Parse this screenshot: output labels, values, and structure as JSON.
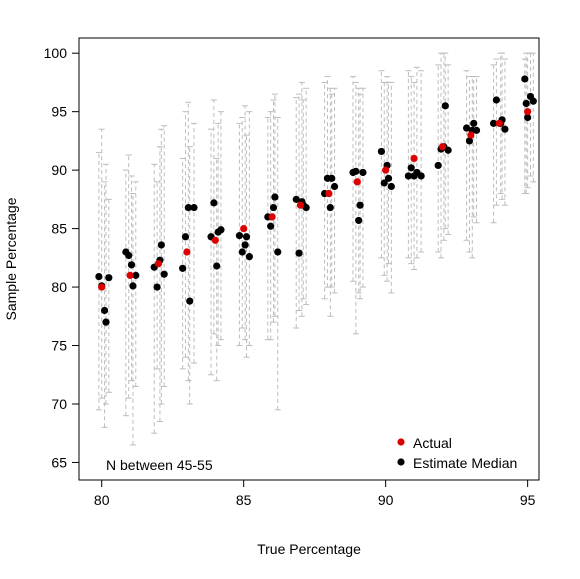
{
  "chart_data": {
    "type": "scatter",
    "xlabel": "True Percentage",
    "ylabel": "Sample Percentage",
    "xlim": [
      79.2,
      95.4
    ],
    "ylim": [
      63.5,
      101.3
    ],
    "xticks": [
      80,
      85,
      90,
      95
    ],
    "yticks": [
      65,
      70,
      75,
      80,
      85,
      90,
      95,
      100
    ],
    "annotation": "N between 45-55",
    "legend_position": "bottom-right",
    "colors": {
      "actual": "#dd0000",
      "median": "#000000",
      "interval": "#bdbdbd"
    },
    "series": [
      {
        "name": "Actual",
        "color": "#dd0000",
        "points": [
          [
            80,
            80
          ],
          [
            81,
            81
          ],
          [
            82,
            82
          ],
          [
            83,
            83
          ],
          [
            84,
            84
          ],
          [
            85,
            85
          ],
          [
            86,
            86
          ],
          [
            87,
            87
          ],
          [
            88,
            88
          ],
          [
            89,
            89
          ],
          [
            90,
            90
          ],
          [
            91,
            91
          ],
          [
            92,
            92
          ],
          [
            93,
            93
          ],
          [
            94,
            94
          ],
          [
            95,
            95
          ]
        ]
      },
      {
        "name": "Estimate Median",
        "color": "#000000",
        "points": [
          {
            "x": 79.9,
            "y": 80.9,
            "lo": 69.5,
            "hi": 91.5
          },
          {
            "x": 80.0,
            "y": 80.1,
            "lo": 70.5,
            "hi": 93.5
          },
          {
            "x": 80.1,
            "y": 78.0,
            "lo": 68.0,
            "hi": 89.0
          },
          {
            "x": 80.15,
            "y": 77.0,
            "lo": 70.0,
            "hi": 90.5
          },
          {
            "x": 80.25,
            "y": 80.8,
            "lo": 71.0,
            "hi": 87.5
          },
          {
            "x": 80.85,
            "y": 83.0,
            "lo": 69.0,
            "hi": 90.0
          },
          {
            "x": 80.95,
            "y": 82.7,
            "lo": 70.5,
            "hi": 91.3
          },
          {
            "x": 81.05,
            "y": 81.9,
            "lo": 72.0,
            "hi": 89.5
          },
          {
            "x": 81.1,
            "y": 80.1,
            "lo": 66.5,
            "hi": 88.0
          },
          {
            "x": 81.2,
            "y": 81.0,
            "lo": 71.5,
            "hi": 89.0
          },
          {
            "x": 81.85,
            "y": 81.7,
            "lo": 67.5,
            "hi": 90.5
          },
          {
            "x": 81.95,
            "y": 80.0,
            "lo": 73.0,
            "hi": 89.0
          },
          {
            "x": 82.05,
            "y": 82.3,
            "lo": 68.5,
            "hi": 92.0
          },
          {
            "x": 82.1,
            "y": 83.6,
            "lo": 70.0,
            "hi": 93.5
          },
          {
            "x": 82.2,
            "y": 81.1,
            "lo": 71.5,
            "hi": 93.8
          },
          {
            "x": 82.85,
            "y": 81.6,
            "lo": 73.0,
            "hi": 91.0
          },
          {
            "x": 82.95,
            "y": 84.3,
            "lo": 74.0,
            "hi": 95.0
          },
          {
            "x": 83.05,
            "y": 86.8,
            "lo": 72.0,
            "hi": 95.8
          },
          {
            "x": 83.1,
            "y": 78.8,
            "lo": 70.0,
            "hi": 92.0
          },
          {
            "x": 83.25,
            "y": 86.8,
            "lo": 73.5,
            "hi": 94.0
          },
          {
            "x": 83.85,
            "y": 84.3,
            "lo": 72.5,
            "hi": 93.5
          },
          {
            "x": 83.95,
            "y": 87.2,
            "lo": 76.0,
            "hi": 96.0
          },
          {
            "x": 84.05,
            "y": 81.8,
            "lo": 72.0,
            "hi": 91.0
          },
          {
            "x": 84.1,
            "y": 84.7,
            "lo": 75.0,
            "hi": 94.0
          },
          {
            "x": 84.2,
            "y": 84.9,
            "lo": 75.5,
            "hi": 95.0
          },
          {
            "x": 84.85,
            "y": 84.4,
            "lo": 75.0,
            "hi": 94.0
          },
          {
            "x": 84.95,
            "y": 83.0,
            "lo": 76.5,
            "hi": 94.5
          },
          {
            "x": 85.05,
            "y": 83.6,
            "lo": 75.5,
            "hi": 95.5
          },
          {
            "x": 85.1,
            "y": 84.3,
            "lo": 74.0,
            "hi": 93.0
          },
          {
            "x": 85.2,
            "y": 82.6,
            "lo": 75.0,
            "hi": 95.0
          },
          {
            "x": 85.85,
            "y": 86.0,
            "lo": 75.5,
            "hi": 94.5
          },
          {
            "x": 85.95,
            "y": 85.2,
            "lo": 75.5,
            "hi": 95.0
          },
          {
            "x": 86.05,
            "y": 86.8,
            "lo": 77.0,
            "hi": 96.0
          },
          {
            "x": 86.1,
            "y": 87.7,
            "lo": 77.5,
            "hi": 96.5
          },
          {
            "x": 86.2,
            "y": 83.0,
            "lo": 69.5,
            "hi": 94.5
          },
          {
            "x": 86.85,
            "y": 87.5,
            "lo": 76.5,
            "hi": 96.2
          },
          {
            "x": 86.95,
            "y": 82.9,
            "lo": 78.0,
            "hi": 96.5
          },
          {
            "x": 87.05,
            "y": 87.3,
            "lo": 77.5,
            "hi": 97.5
          },
          {
            "x": 87.1,
            "y": 87.0,
            "lo": 79.0,
            "hi": 96.0
          },
          {
            "x": 87.2,
            "y": 86.8,
            "lo": 78.5,
            "hi": 97.0
          },
          {
            "x": 87.85,
            "y": 88.0,
            "lo": 79.0,
            "hi": 97.5
          },
          {
            "x": 87.95,
            "y": 89.3,
            "lo": 80.0,
            "hi": 98.0
          },
          {
            "x": 88.05,
            "y": 86.8,
            "lo": 77.5,
            "hi": 97.0
          },
          {
            "x": 88.1,
            "y": 89.3,
            "lo": 80.0,
            "hi": 96.5
          },
          {
            "x": 88.2,
            "y": 88.6,
            "lo": 79.5,
            "hi": 97.0
          },
          {
            "x": 88.85,
            "y": 89.8,
            "lo": 80.5,
            "hi": 98.0
          },
          {
            "x": 88.95,
            "y": 89.9,
            "lo": 76.0,
            "hi": 97.5
          },
          {
            "x": 89.05,
            "y": 85.7,
            "lo": 79.5,
            "hi": 97.0
          },
          {
            "x": 89.1,
            "y": 87.0,
            "lo": 79.0,
            "hi": 96.5
          },
          {
            "x": 89.2,
            "y": 89.8,
            "lo": 80.0,
            "hi": 97.0
          },
          {
            "x": 89.85,
            "y": 91.6,
            "lo": 82.5,
            "hi": 98.5
          },
          {
            "x": 89.95,
            "y": 88.9,
            "lo": 81.0,
            "hi": 97.5
          },
          {
            "x": 90.05,
            "y": 90.4,
            "lo": 80.5,
            "hi": 98.0
          },
          {
            "x": 90.1,
            "y": 89.3,
            "lo": 82.0,
            "hi": 97.5
          },
          {
            "x": 90.2,
            "y": 88.6,
            "lo": 79.5,
            "hi": 97.5
          },
          {
            "x": 90.8,
            "y": 89.5,
            "lo": 82.5,
            "hi": 98.5
          },
          {
            "x": 90.9,
            "y": 90.2,
            "lo": 82.0,
            "hi": 98.0
          },
          {
            "x": 91.0,
            "y": 89.5,
            "lo": 81.5,
            "hi": 97.5
          },
          {
            "x": 91.1,
            "y": 89.8,
            "lo": 82.5,
            "hi": 98.8
          },
          {
            "x": 91.25,
            "y": 89.5,
            "lo": 83.0,
            "hi": 98.5
          },
          {
            "x": 91.85,
            "y": 90.4,
            "lo": 83.0,
            "hi": 99.0
          },
          {
            "x": 91.95,
            "y": 91.8,
            "lo": 82.5,
            "hi": 100.0
          },
          {
            "x": 92.05,
            "y": 92.0,
            "lo": 84.0,
            "hi": 100.0
          },
          {
            "x": 92.1,
            "y": 95.5,
            "lo": 85.0,
            "hi": 100.0
          },
          {
            "x": 92.2,
            "y": 91.7,
            "lo": 84.5,
            "hi": 99.0
          },
          {
            "x": 92.85,
            "y": 93.6,
            "lo": 84.0,
            "hi": 98.5
          },
          {
            "x": 92.95,
            "y": 92.5,
            "lo": 83.0,
            "hi": 98.0
          },
          {
            "x": 93.05,
            "y": 93.4,
            "lo": 82.5,
            "hi": 98.0
          },
          {
            "x": 93.1,
            "y": 94.0,
            "lo": 86.0,
            "hi": 98.0
          },
          {
            "x": 93.2,
            "y": 93.4,
            "lo": 85.5,
            "hi": 98.0
          },
          {
            "x": 93.8,
            "y": 94.0,
            "lo": 85.5,
            "hi": 99.0
          },
          {
            "x": 93.9,
            "y": 96.0,
            "lo": 87.0,
            "hi": 99.5
          },
          {
            "x": 94.05,
            "y": 94.0,
            "lo": 88.0,
            "hi": 100.0
          },
          {
            "x": 94.1,
            "y": 94.3,
            "lo": 87.5,
            "hi": 100.0
          },
          {
            "x": 94.2,
            "y": 93.5,
            "lo": 87.0,
            "hi": 99.5
          },
          {
            "x": 94.9,
            "y": 97.8,
            "lo": 88.0,
            "hi": 99.5
          },
          {
            "x": 94.95,
            "y": 95.7,
            "lo": 88.0,
            "hi": 100.0
          },
          {
            "x": 95.0,
            "y": 94.5,
            "lo": 88.5,
            "hi": 100.0
          },
          {
            "x": 95.1,
            "y": 96.3,
            "lo": 89.5,
            "hi": 100.0
          },
          {
            "x": 95.2,
            "y": 95.9,
            "lo": 89.0,
            "hi": 100.0
          }
        ]
      }
    ]
  }
}
